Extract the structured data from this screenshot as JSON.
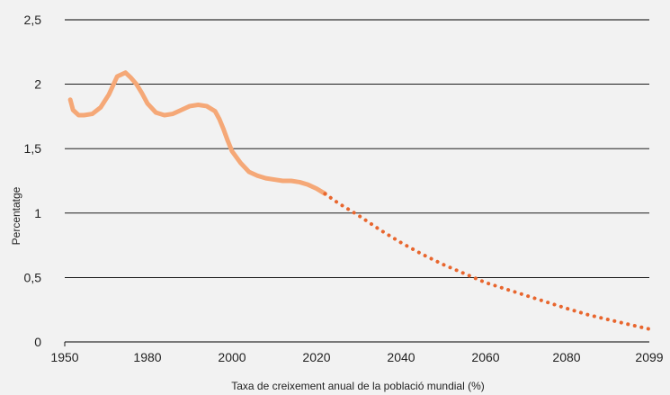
{
  "chart_data": {
    "type": "line",
    "xlabel": "Taxa de creixement anual de la població mundial (%)",
    "ylabel": "Percentatge",
    "xlim": [
      1950,
      2099
    ],
    "ylim": [
      0,
      2.5
    ],
    "x_ticks": [
      "1950",
      "1980",
      "2000",
      "2020",
      "2040",
      "2060",
      "2080",
      "2099"
    ],
    "y_ticks": [
      "0",
      "0,5",
      "1",
      "1,5",
      "2",
      "2,5"
    ],
    "grid": true,
    "legend": "none",
    "series": [
      {
        "style": "solid",
        "color": "#f5a877",
        "x": [
          1952,
          1953,
          1955,
          1957,
          1960,
          1963,
          1966,
          1969,
          1972,
          1974,
          1976,
          1978,
          1980,
          1982,
          1984,
          1986,
          1988,
          1990,
          1992,
          1994,
          1996,
          1997,
          1998,
          1999,
          2000,
          2002,
          2004,
          2006,
          2008,
          2010,
          2012,
          2014,
          2016,
          2018,
          2020,
          2022
        ],
        "values": [
          1.88,
          1.8,
          1.76,
          1.76,
          1.77,
          1.82,
          1.92,
          2.06,
          2.09,
          2.05,
          2.0,
          1.93,
          1.85,
          1.78,
          1.76,
          1.77,
          1.8,
          1.83,
          1.84,
          1.83,
          1.79,
          1.73,
          1.65,
          1.56,
          1.48,
          1.39,
          1.32,
          1.29,
          1.27,
          1.26,
          1.25,
          1.25,
          1.24,
          1.22,
          1.19,
          1.15
        ]
      },
      {
        "style": "dotted",
        "color": "#e8662e",
        "x": [
          2022,
          2025,
          2030,
          2035,
          2040,
          2045,
          2050,
          2055,
          2060,
          2065,
          2070,
          2075,
          2080,
          2085,
          2090,
          2095,
          2099
        ],
        "values": [
          1.15,
          1.08,
          0.98,
          0.87,
          0.77,
          0.68,
          0.6,
          0.53,
          0.46,
          0.41,
          0.36,
          0.31,
          0.26,
          0.21,
          0.17,
          0.13,
          0.1
        ]
      }
    ]
  }
}
